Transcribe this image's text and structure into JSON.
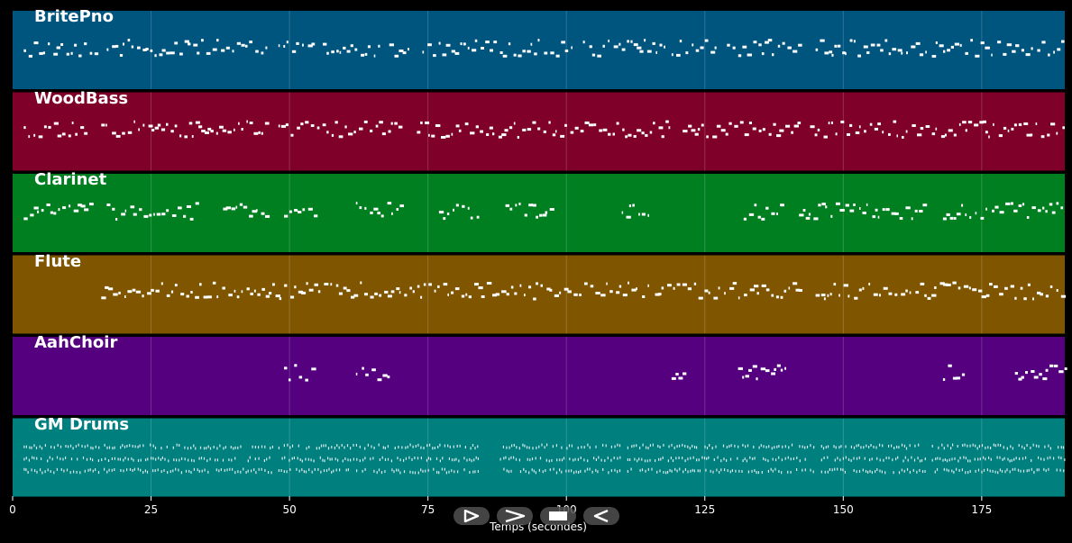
{
  "chart_data": {
    "type": "piano-roll",
    "xlabel": "Temps (secondes)",
    "xlim": [
      0,
      190
    ],
    "x_ticks": [
      0,
      25,
      50,
      75,
      100,
      125,
      150,
      175
    ],
    "grid": true,
    "tracks": [
      {
        "name": "BritePno",
        "color": "#00557f",
        "active_ranges": [
          [
            2,
            15
          ],
          [
            17,
            46
          ],
          [
            48,
            55
          ],
          [
            56,
            61
          ],
          [
            61,
            67
          ],
          [
            68,
            72
          ],
          [
            74,
            87
          ],
          [
            88,
            101
          ],
          [
            103,
            118
          ],
          [
            119,
            127
          ],
          [
            129,
            142
          ],
          [
            145,
            165
          ],
          [
            166,
            190
          ]
        ]
      },
      {
        "name": "WoodBass",
        "color": "#7f0029",
        "active_ranges": [
          [
            2,
            14
          ],
          [
            16,
            46
          ],
          [
            48,
            70
          ],
          [
            73,
            119
          ],
          [
            121,
            142
          ],
          [
            144,
            165
          ],
          [
            166,
            190
          ]
        ]
      },
      {
        "name": "Clarinet",
        "color": "#007f21",
        "active_ranges": [
          [
            2,
            14
          ],
          [
            17,
            33
          ],
          [
            38,
            46
          ],
          [
            49,
            55
          ],
          [
            62,
            70
          ],
          [
            77,
            84
          ],
          [
            89,
            97
          ],
          [
            110,
            115
          ],
          [
            132,
            139
          ],
          [
            142,
            165
          ],
          [
            168,
            190
          ]
        ]
      },
      {
        "name": "Flute",
        "color": "#7f5500",
        "active_ranges": [
          [
            16,
            115
          ],
          [
            116,
            142
          ],
          [
            145,
            190
          ]
        ]
      },
      {
        "name": "AahChoir",
        "color": "#55007f",
        "active_ranges": [
          [
            49,
            54
          ],
          [
            62,
            68
          ],
          [
            119,
            122
          ],
          [
            131,
            140
          ],
          [
            168,
            172
          ],
          [
            181,
            190
          ]
        ]
      },
      {
        "name": "GM Drums",
        "color": "#007f7f",
        "active_ranges": [
          [
            2,
            47
          ],
          [
            48,
            84
          ],
          [
            88,
            110
          ],
          [
            111,
            145
          ],
          [
            146,
            165
          ],
          [
            166,
            190
          ]
        ]
      }
    ]
  },
  "controls": {
    "play_icon": "play-outline-icon",
    "forward_icon": "chevron-right-icon",
    "stop_icon": "stop-icon",
    "rewind_icon": "rewind-icon"
  }
}
